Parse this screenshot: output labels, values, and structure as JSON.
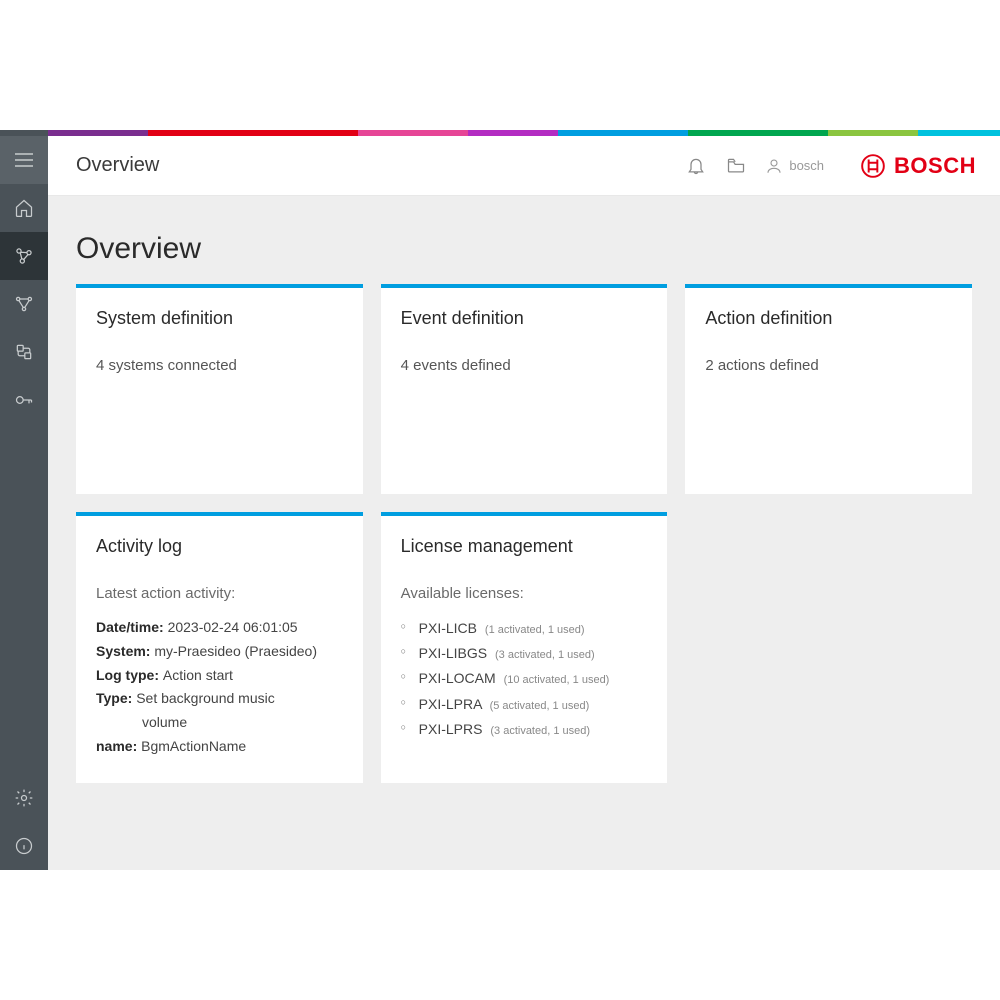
{
  "colorStrip": [
    {
      "color": "#4a5258",
      "width": 4.8
    },
    {
      "color": "#7a2e8f",
      "width": 10
    },
    {
      "color": "#e20015",
      "width": 21
    },
    {
      "color": "#e64596",
      "width": 11
    },
    {
      "color": "#b32cc2",
      "width": 9
    },
    {
      "color": "#009ee0",
      "width": 13
    },
    {
      "color": "#00a64f",
      "width": 14
    },
    {
      "color": "#8bc53f",
      "width": 9
    },
    {
      "color": "#00c2de",
      "width": 8.2
    }
  ],
  "header": {
    "title": "Overview",
    "username": "bosch",
    "brand": "BOSCH",
    "brandColor": "#e20015"
  },
  "accentColor": "#009ee0",
  "sidebar": {
    "bg": "#4a5258",
    "activeBg": "#2d3438",
    "items": [
      {
        "name": "home-icon",
        "active": false
      },
      {
        "name": "overview-icon",
        "active": true
      },
      {
        "name": "network-icon",
        "active": false
      },
      {
        "name": "events-icon",
        "active": false
      },
      {
        "name": "key-icon",
        "active": false
      }
    ],
    "bottom": [
      {
        "name": "settings-icon"
      },
      {
        "name": "info-icon"
      }
    ]
  },
  "page": {
    "title": "Overview"
  },
  "cards": {
    "system": {
      "title": "System definition",
      "body": "4 systems connected"
    },
    "event": {
      "title": "Event definition",
      "body": "4 events defined"
    },
    "action": {
      "title": "Action definition",
      "body": "2 actions defined"
    },
    "activity": {
      "title": "Activity log",
      "subhead": "Latest action activity:",
      "rows": [
        {
          "label": "Date/time:",
          "value": "2023-02-24 06:01:05"
        },
        {
          "label": "System:",
          "value": "my-Praesideo (Praesideo)"
        },
        {
          "label": "Log type:",
          "value": "Action start"
        },
        {
          "label": "Type:",
          "value": "Set background music",
          "value2": "volume"
        },
        {
          "label": "name:",
          "value": "BgmActionName"
        }
      ]
    },
    "license": {
      "title": "License management",
      "subhead": "Available licenses:",
      "items": [
        {
          "code": "PXI-LICB",
          "detail": "(1 activated, 1 used)"
        },
        {
          "code": "PXI-LIBGS",
          "detail": "(3 activated, 1 used)"
        },
        {
          "code": "PXI-LOCAM",
          "detail": "(10 activated, 1 used)"
        },
        {
          "code": "PXI-LPRA",
          "detail": "(5 activated, 1 used)"
        },
        {
          "code": "PXI-LPRS",
          "detail": "(3 activated, 1 used)"
        }
      ]
    }
  }
}
